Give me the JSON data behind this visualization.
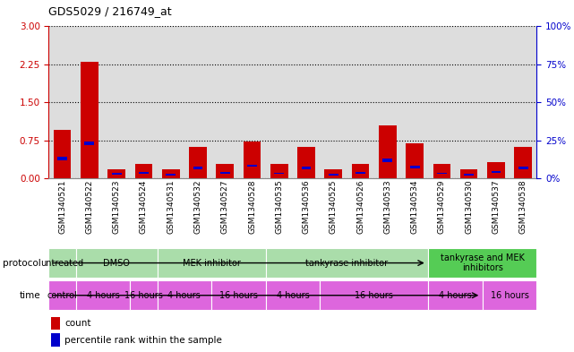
{
  "title": "GDS5029 / 216749_at",
  "samples": [
    "GSM1340521",
    "GSM1340522",
    "GSM1340523",
    "GSM1340524",
    "GSM1340531",
    "GSM1340532",
    "GSM1340527",
    "GSM1340528",
    "GSM1340535",
    "GSM1340536",
    "GSM1340525",
    "GSM1340526",
    "GSM1340533",
    "GSM1340534",
    "GSM1340529",
    "GSM1340530",
    "GSM1340537",
    "GSM1340538"
  ],
  "red_values": [
    0.95,
    2.3,
    0.18,
    0.28,
    0.18,
    0.62,
    0.28,
    0.72,
    0.28,
    0.62,
    0.18,
    0.28,
    1.05,
    0.68,
    0.28,
    0.18,
    0.32,
    0.62
  ],
  "blue_bottom": [
    0.35,
    0.65,
    0.06,
    0.09,
    0.05,
    0.18,
    0.09,
    0.22,
    0.08,
    0.18,
    0.05,
    0.08,
    0.32,
    0.2,
    0.08,
    0.05,
    0.1,
    0.18
  ],
  "blue_height": [
    0.07,
    0.07,
    0.04,
    0.04,
    0.03,
    0.04,
    0.04,
    0.05,
    0.03,
    0.04,
    0.03,
    0.04,
    0.06,
    0.04,
    0.03,
    0.03,
    0.04,
    0.04
  ],
  "protocol_groups": [
    {
      "label": "untreated",
      "start": 0,
      "end": 1,
      "color": "#aaddaa"
    },
    {
      "label": "DMSO",
      "start": 1,
      "end": 4,
      "color": "#aaddaa"
    },
    {
      "label": "MEK inhibitor",
      "start": 4,
      "end": 8,
      "color": "#aaddaa"
    },
    {
      "label": "tankyrase inhibitor",
      "start": 8,
      "end": 14,
      "color": "#aaddaa"
    },
    {
      "label": "tankyrase and MEK\ninhibitors",
      "start": 14,
      "end": 18,
      "color": "#55cc55"
    }
  ],
  "time_groups": [
    {
      "label": "control",
      "start": 0,
      "end": 1,
      "color": "#dd66dd"
    },
    {
      "label": "4 hours",
      "start": 1,
      "end": 3,
      "color": "#dd66dd"
    },
    {
      "label": "16 hours",
      "start": 3,
      "end": 4,
      "color": "#dd66dd"
    },
    {
      "label": "4 hours",
      "start": 4,
      "end": 6,
      "color": "#dd66dd"
    },
    {
      "label": "16 hours",
      "start": 6,
      "end": 8,
      "color": "#dd66dd"
    },
    {
      "label": "4 hours",
      "start": 8,
      "end": 10,
      "color": "#dd66dd"
    },
    {
      "label": "16 hours",
      "start": 10,
      "end": 14,
      "color": "#dd66dd"
    },
    {
      "label": "4 hours",
      "start": 14,
      "end": 16,
      "color": "#dd66dd"
    },
    {
      "label": "16 hours",
      "start": 16,
      "end": 18,
      "color": "#dd66dd"
    }
  ],
  "ylim_left": [
    0,
    3
  ],
  "ylim_right": [
    0,
    100
  ],
  "yticks_left": [
    0,
    0.75,
    1.5,
    2.25,
    3
  ],
  "yticks_right": [
    0,
    25,
    50,
    75,
    100
  ],
  "bg_color": "#ffffff",
  "bar_bg_color": "#dddddd",
  "red_color": "#cc0000",
  "blue_color": "#0000cc",
  "left_axis_color": "#cc0000",
  "right_axis_color": "#0000cc"
}
